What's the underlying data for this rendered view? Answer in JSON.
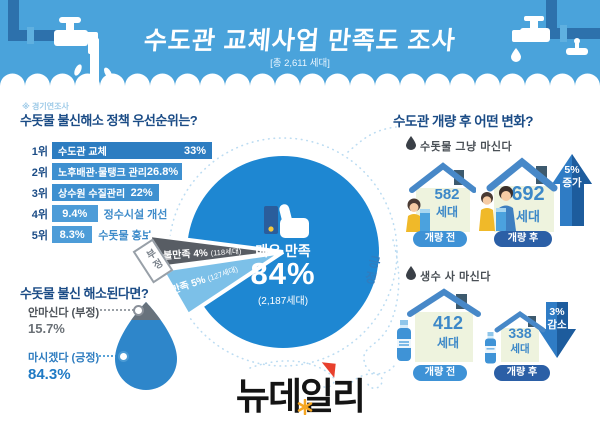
{
  "banner": {
    "title": "수도관 교체사업 만족도 조사",
    "subtitle": "[총 2,611 세대]"
  },
  "note": "※ 경기연조사",
  "priority": {
    "title": "수돗물 불신해소 정책 우선순위는?",
    "rows": [
      {
        "rank": "1위",
        "label": "수도관 교체",
        "value": "33%",
        "pct": 33
      },
      {
        "rank": "2위",
        "label": "노후배관·물탱크 관리",
        "value": "26.8%",
        "pct": 26.8
      },
      {
        "rank": "3위",
        "label": "상수원 수질관리",
        "value": "22%",
        "pct": 22
      },
      {
        "rank": "4위",
        "label": "정수시설 개선",
        "value": "9.4%",
        "pct": 9.4
      },
      {
        "rank": "5위",
        "label": "수돗물 홍보",
        "value": "8.3%",
        "pct": 8.3
      }
    ]
  },
  "satisfaction": {
    "positive_label": "긍정",
    "negative_label": "부정",
    "very": {
      "label": "매우 만족",
      "value": "84%",
      "households": "(2,187세대)"
    },
    "satisfied": {
      "label": "만족 5%",
      "households": "(127세대)"
    },
    "dissatisfied": {
      "label": "불만족 4%",
      "households": "(118세대)"
    }
  },
  "changes": {
    "title": "수도관 개량 후 어떤 변화?",
    "tap": {
      "label": "수돗물 그냥 마신다",
      "before_value": "582",
      "before_unit": "세대",
      "before_badge": "개량 전",
      "after_value": "692",
      "after_unit": "세대",
      "after_badge": "개량 후",
      "delta": "5%",
      "delta_word": "증가"
    },
    "bottled": {
      "label": "생수 사 마신다",
      "before_value": "412",
      "before_unit": "세대",
      "before_badge": "개량 전",
      "after_value": "338",
      "after_unit": "세대",
      "after_badge": "개량 후",
      "delta": "3%",
      "delta_word": "감소"
    }
  },
  "trust": {
    "title": "수돗물 불신 해소된다면?",
    "negative_label": "안마신다 (부정)",
    "negative_value": "15.7%",
    "positive_label": "마시겠다 (긍정)",
    "positive_value": "84.3%"
  },
  "logo": "뉴데일리",
  "colors": {
    "banner_blue": "#4aa3db",
    "navy_text": "#1b4c86",
    "bar_dark": "#2d7dc1",
    "bar_mid": "#3e90d0",
    "bar_light": "#4d9cd8",
    "pie_blue": "#1e87d2",
    "wedge_dark": "#585d64",
    "wedge_light": "#7cc0e8",
    "badge_before": "#3e92d6",
    "badge_after": "#2b5fa6",
    "logo_red": "#e8402d",
    "logo_orange": "#f5a623"
  },
  "chart_data": [
    {
      "type": "bar",
      "title": "수돗물 불신해소 정책 우선순위는?",
      "categories": [
        "수도관 교체",
        "노후배관·물탱크 관리",
        "상수원 수질관리",
        "정수시설 개선",
        "수돗물 홍보"
      ],
      "values": [
        33,
        26.8,
        22,
        9.4,
        8.3
      ],
      "unit": "%",
      "rank_labels": [
        "1위",
        "2위",
        "3위",
        "4위",
        "5위"
      ],
      "orientation": "horizontal"
    },
    {
      "type": "pie",
      "title": "수도관 교체사업 만족도 조사 [총 2,611 세대]",
      "labels": [
        "매우 만족",
        "만족",
        "불만족"
      ],
      "values": [
        84,
        5,
        4
      ],
      "counts_households": [
        2187,
        127,
        118
      ],
      "unit": "%",
      "groups": {
        "긍정": [
          "매우 만족",
          "만족"
        ],
        "부정": [
          "불만족"
        ]
      }
    },
    {
      "type": "bar",
      "title": "수도관 개량 후 어떤 변화? — 수돗물 그냥 마신다",
      "categories": [
        "개량 전",
        "개량 후"
      ],
      "values": [
        582,
        692
      ],
      "unit": "세대",
      "change": "5% 증가"
    },
    {
      "type": "bar",
      "title": "수도관 개량 후 어떤 변화? — 생수 사 마신다",
      "categories": [
        "개량 전",
        "개량 후"
      ],
      "values": [
        412,
        338
      ],
      "unit": "세대",
      "change": "3% 감소"
    },
    {
      "type": "pie",
      "title": "수돗물 불신 해소된다면?",
      "labels": [
        "마시겠다 (긍정)",
        "안마신다 (부정)"
      ],
      "values": [
        84.3,
        15.7
      ],
      "unit": "%"
    }
  ]
}
